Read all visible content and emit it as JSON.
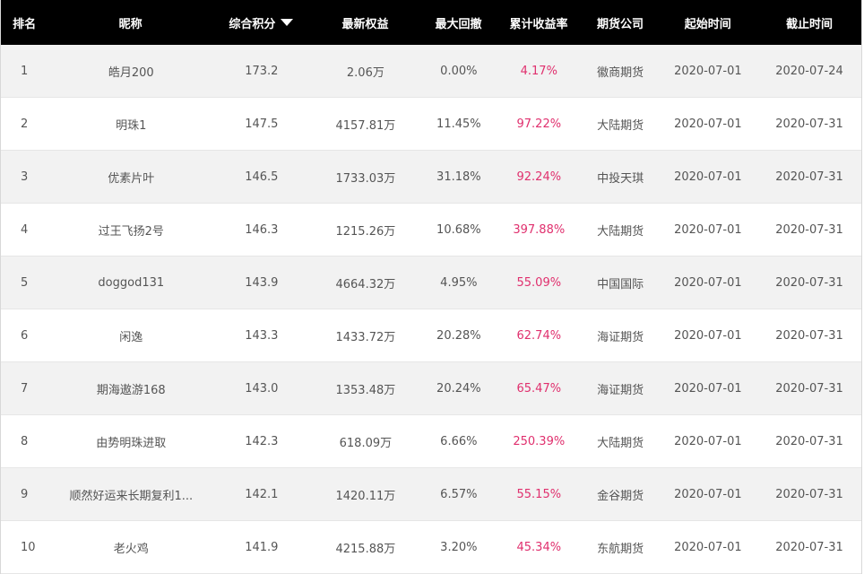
{
  "table": {
    "headers": {
      "rank": "排名",
      "nickname": "昵称",
      "score": "综合积分",
      "equity": "最新权益",
      "drawdown": "最大回撤",
      "return": "累计收益率",
      "company": "期货公司",
      "start": "起始时间",
      "end": "截止时间"
    },
    "sort_column": "score",
    "sort_direction": "desc",
    "accent_color": "#e0306e",
    "rows": [
      {
        "rank": "1",
        "nickname": "皓月200",
        "score": "173.2",
        "equity": "2.06万",
        "drawdown": "0.00%",
        "return": "4.17%",
        "company": "徽商期货",
        "start": "2020-07-01",
        "end": "2020-07-24"
      },
      {
        "rank": "2",
        "nickname": "明珠1",
        "score": "147.5",
        "equity": "4157.81万",
        "drawdown": "11.45%",
        "return": "97.22%",
        "company": "大陆期货",
        "start": "2020-07-01",
        "end": "2020-07-31"
      },
      {
        "rank": "3",
        "nickname": "优素片叶",
        "score": "146.5",
        "equity": "1733.03万",
        "drawdown": "31.18%",
        "return": "92.24%",
        "company": "中投天琪",
        "start": "2020-07-01",
        "end": "2020-07-31"
      },
      {
        "rank": "4",
        "nickname": "过王飞扬2号",
        "score": "146.3",
        "equity": "1215.26万",
        "drawdown": "10.68%",
        "return": "397.88%",
        "company": "大陆期货",
        "start": "2020-07-01",
        "end": "2020-07-31"
      },
      {
        "rank": "5",
        "nickname": "doggod131",
        "score": "143.9",
        "equity": "4664.32万",
        "drawdown": "4.95%",
        "return": "55.09%",
        "company": "中国国际",
        "start": "2020-07-01",
        "end": "2020-07-31"
      },
      {
        "rank": "6",
        "nickname": "闲逸",
        "score": "143.3",
        "equity": "1433.72万",
        "drawdown": "20.28%",
        "return": "62.74%",
        "company": "海证期货",
        "start": "2020-07-01",
        "end": "2020-07-31"
      },
      {
        "rank": "7",
        "nickname": "期海遨游168",
        "score": "143.0",
        "equity": "1353.48万",
        "drawdown": "20.24%",
        "return": "65.47%",
        "company": "海证期货",
        "start": "2020-07-01",
        "end": "2020-07-31"
      },
      {
        "rank": "8",
        "nickname": "由势明珠进取",
        "score": "142.3",
        "equity": "618.09万",
        "drawdown": "6.66%",
        "return": "250.39%",
        "company": "大陆期货",
        "start": "2020-07-01",
        "end": "2020-07-31"
      },
      {
        "rank": "9",
        "nickname": "顺然好运来长期复利1...",
        "score": "142.1",
        "equity": "1420.11万",
        "drawdown": "6.57%",
        "return": "55.15%",
        "company": "金谷期货",
        "start": "2020-07-01",
        "end": "2020-07-31"
      },
      {
        "rank": "10",
        "nickname": "老火鸡",
        "score": "141.9",
        "equity": "4215.88万",
        "drawdown": "3.20%",
        "return": "45.34%",
        "company": "东航期货",
        "start": "2020-07-01",
        "end": "2020-07-31"
      }
    ]
  }
}
